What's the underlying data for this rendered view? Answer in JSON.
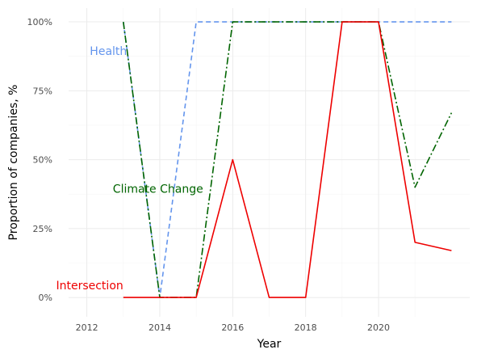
{
  "chart_data": {
    "type": "line",
    "title": "",
    "xlabel": "Year",
    "ylabel": "Proportion of companies, %",
    "x_ticks": [
      "2012",
      "2014",
      "2016",
      "2018",
      "2020"
    ],
    "y_ticks": [
      "0%",
      "25%",
      "50%",
      "75%",
      "100%"
    ],
    "xlim": [
      2011.5,
      2022.5
    ],
    "ylim": [
      -0.07,
      1.05
    ],
    "grid": true,
    "legend": "none (direct labels)",
    "series": [
      {
        "name": "Health",
        "color": "#6495ED",
        "dash": "dashed",
        "x": [
          2013,
          2014,
          2015,
          2016,
          2017,
          2018,
          2019,
          2020,
          2021,
          2022
        ],
        "y": [
          1.0,
          0.0,
          1.0,
          1.0,
          1.0,
          1.0,
          1.0,
          1.0,
          1.0,
          1.0
        ]
      },
      {
        "name": "Climate Change",
        "color": "#006400",
        "dash": "dashdot",
        "x": [
          2013,
          2014,
          2015,
          2016,
          2017,
          2018,
          2019,
          2020,
          2021,
          2022
        ],
        "y": [
          1.0,
          0.0,
          0.0,
          1.0,
          1.0,
          1.0,
          1.0,
          1.0,
          0.4,
          0.67
        ]
      },
      {
        "name": "Intersection",
        "color": "#EE0000",
        "dash": "solid",
        "x": [
          2013,
          2014,
          2015,
          2016,
          2017,
          2018,
          2019,
          2020,
          2021,
          2022
        ],
        "y": [
          0.0,
          0.0,
          0.0,
          0.5,
          0.0,
          0.0,
          1.0,
          1.0,
          0.2,
          0.17
        ]
      }
    ]
  }
}
